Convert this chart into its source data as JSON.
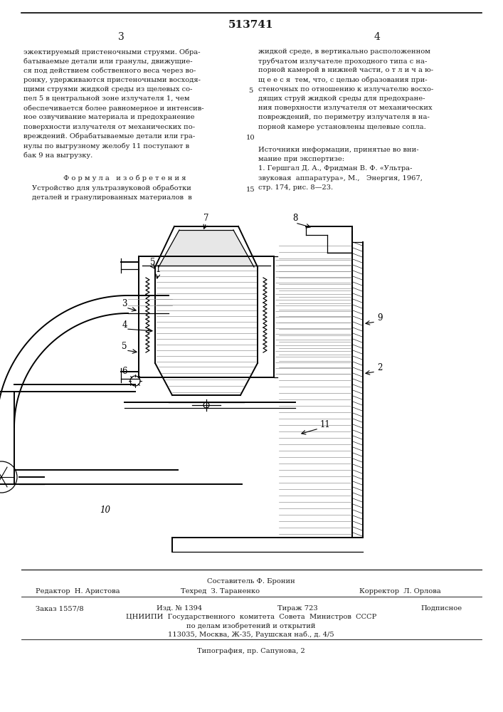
{
  "patent_number": "513741",
  "page_numbers": [
    "3",
    "4"
  ],
  "col1_text": [
    "эжектируемый пристеночными струями. Обра-",
    "батываемые детали или гранулы, движущие-",
    "ся под действием собственного веса через во-",
    "ронку, удерживаются пристеночными восходя-",
    "щими струями жидкой среды из щелевых со-",
    "пел 5 в центральной зоне излучателя 1, чем",
    "обеспечивается более равномерное и интенсив-",
    "ное озвучивание материала и предохранение",
    "поверхности излучателя от механических по-",
    "вреждений. Обрабатываемые детали или гра-",
    "нулы по выгрузному желобу 11 поступают в",
    "бак 9 на выгрузку."
  ],
  "formula_header": "Ф о р м у л а   и з о б р е т е н и я",
  "formula_text": [
    "Устройство для ультразвуковой обработки",
    "деталей и гранулированных материалов  в"
  ],
  "col2_text": [
    "жидкой среде, в вертикально расположенном",
    "трубчатом излучателе проходного типа с на-",
    "порной камерой в нижней части, о т л и ч а ю-",
    "щ е е с я  тем, что, с целью образования при-",
    "стеночных по отношению к излучателю восхо-",
    "дящих струй жидкой среды для предохране-",
    "ния поверхности излучателя от механических",
    "повреждений, по периметру излучателя в на-",
    "порной камере установлены щелевые сопла."
  ],
  "sources_header": "Источники информации, принятые во вни-",
  "sources_text": [
    "мание при экспертизе:",
    "1. Гершгал Д. А., Фридман В. Ф. «Ультра-",
    "звуковая  аппаратура», М.,   Энергия, 1967,",
    "стр. 174, рис. 8—23."
  ],
  "footer_composer": "Составитель Ф. Бронин",
  "footer_editor": "Редактор  Н. Аристова",
  "footer_tech": "Техред  З. Тараненко",
  "footer_corrector": "Корректор  Л. Орлова",
  "footer_order": "Заказ 1557/8",
  "footer_pub": "Изд. № 1394",
  "footer_circulation": "Тираж 723",
  "footer_signed": "Подписное",
  "footer_org": "ЦНИИПИ  Государственного  комитета  Совета  Министров  СССР",
  "footer_dept": "по делам изобретений и открытий",
  "footer_addr": "113035, Москва, Ж-35, Раушская наб., д. 4/5",
  "footer_print": "Типография, пр. Сапунова, 2",
  "bg_color": "#ffffff",
  "text_color": "#1a1a1a"
}
